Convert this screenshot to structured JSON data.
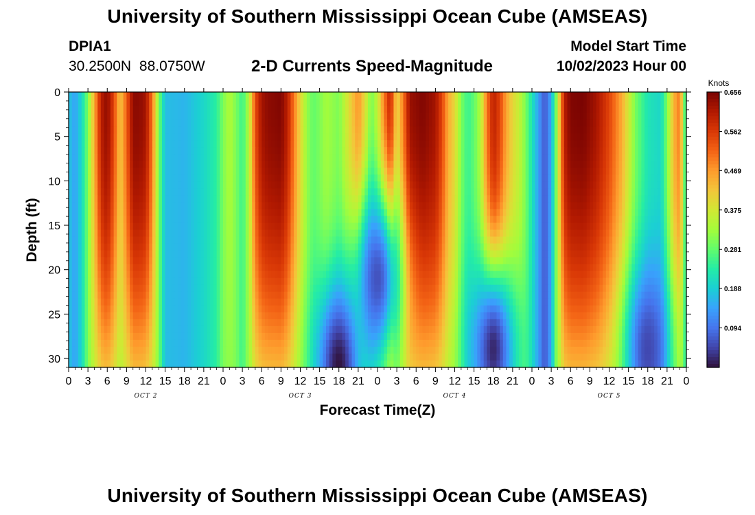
{
  "header": {
    "title": "University of Southern Mississippi Ocean Cube (AMSEAS)",
    "station_id": "DPIA1",
    "station_coords": "30.2500N  88.0750W",
    "model_start_label": "Model Start Time",
    "model_start_value": "10/02/2023 Hour 00"
  },
  "footer": {
    "title": "University of Southern Mississippi Ocean Cube (AMSEAS)"
  },
  "chart_data": {
    "type": "heatmap",
    "title": "2-D Currents Speed-Magnitude",
    "xlabel": "Forecast Time(Z)",
    "ylabel": "Depth (ft)",
    "xlim_hours": [
      0,
      96
    ],
    "ylim": [
      0,
      31
    ],
    "x_tick_labels": [
      "0",
      "3",
      "6",
      "9",
      "12",
      "15",
      "18",
      "21",
      "0",
      "3",
      "6",
      "9",
      "12",
      "15",
      "18",
      "21",
      "0",
      "3",
      "6",
      "9",
      "12",
      "15",
      "18",
      "21",
      "0",
      "3",
      "6",
      "9",
      "12",
      "15",
      "18",
      "21",
      "0"
    ],
    "y_ticks": [
      0,
      5,
      10,
      15,
      20,
      25,
      30
    ],
    "day_labels": [
      {
        "label": "OCT 2",
        "hour": 12
      },
      {
        "label": "OCT 3",
        "hour": 36
      },
      {
        "label": "OCT 4",
        "hour": 60
      },
      {
        "label": "OCT 5",
        "hour": 84
      }
    ],
    "colorbar": {
      "label": "Knots",
      "min": 0.0,
      "max": 0.656,
      "tick_labels": [
        "0.656",
        "0.562",
        "0.469",
        "0.375",
        "0.281",
        "0.188",
        "0.094"
      ],
      "colors": [
        "#30123b",
        "#4145ab",
        "#4675ed",
        "#39a2fc",
        "#1bcfd4",
        "#24eca6",
        "#61fc6c",
        "#a4fc3b",
        "#d1e834",
        "#f3c63a",
        "#fe9b2d",
        "#f36315",
        "#d93806",
        "#b11901",
        "#7a0402"
      ]
    },
    "surface_speed_knots": [
      {
        "hour": 0,
        "speed": 0.18
      },
      {
        "hour": 1,
        "speed": 0.14
      },
      {
        "hour": 2,
        "speed": 0.2
      },
      {
        "hour": 3,
        "speed": 0.3
      },
      {
        "hour": 4,
        "speed": 0.45
      },
      {
        "hour": 5,
        "speed": 0.6
      },
      {
        "hour": 6,
        "speed": 0.64
      },
      {
        "hour": 7,
        "speed": 0.55
      },
      {
        "hour": 8,
        "speed": 0.42
      },
      {
        "hour": 9,
        "speed": 0.52
      },
      {
        "hour": 10,
        "speed": 0.64
      },
      {
        "hour": 11,
        "speed": 0.64
      },
      {
        "hour": 12,
        "speed": 0.62
      },
      {
        "hour": 13,
        "speed": 0.5
      },
      {
        "hour": 14,
        "speed": 0.3
      },
      {
        "hour": 15,
        "speed": 0.17
      },
      {
        "hour": 18,
        "speed": 0.16
      },
      {
        "hour": 21,
        "speed": 0.2
      },
      {
        "hour": 23,
        "speed": 0.24
      },
      {
        "hour": 24,
        "speed": 0.3
      },
      {
        "hour": 25,
        "speed": 0.34
      },
      {
        "hour": 26,
        "speed": 0.3
      },
      {
        "hour": 27,
        "speed": 0.25
      },
      {
        "hour": 28,
        "speed": 0.34
      },
      {
        "hour": 29,
        "speed": 0.54
      },
      {
        "hour": 30,
        "speed": 0.62
      },
      {
        "hour": 31,
        "speed": 0.64
      },
      {
        "hour": 33,
        "speed": 0.65
      },
      {
        "hour": 34,
        "speed": 0.6
      },
      {
        "hour": 35,
        "speed": 0.5
      },
      {
        "hour": 36,
        "speed": 0.4
      },
      {
        "hour": 37,
        "speed": 0.32
      },
      {
        "hour": 38,
        "speed": 0.28
      },
      {
        "hour": 39,
        "speed": 0.3
      },
      {
        "hour": 40,
        "speed": 0.33
      },
      {
        "hour": 42,
        "speed": 0.3
      },
      {
        "hour": 44,
        "speed": 0.42
      },
      {
        "hour": 45,
        "speed": 0.48
      },
      {
        "hour": 46,
        "speed": 0.4
      },
      {
        "hour": 47,
        "speed": 0.3
      },
      {
        "hour": 48,
        "speed": 0.36
      },
      {
        "hour": 49,
        "speed": 0.5
      },
      {
        "hour": 50,
        "speed": 0.6
      },
      {
        "hour": 51,
        "speed": 0.4
      },
      {
        "hour": 52,
        "speed": 0.5
      },
      {
        "hour": 53,
        "speed": 0.63
      },
      {
        "hour": 55,
        "speed": 0.65
      },
      {
        "hour": 57,
        "speed": 0.62
      },
      {
        "hour": 58,
        "speed": 0.55
      },
      {
        "hour": 59,
        "speed": 0.45
      },
      {
        "hour": 60,
        "speed": 0.4
      },
      {
        "hour": 61,
        "speed": 0.3
      },
      {
        "hour": 62,
        "speed": 0.25
      },
      {
        "hour": 63,
        "speed": 0.28
      },
      {
        "hour": 64,
        "speed": 0.34
      },
      {
        "hour": 65,
        "speed": 0.5
      },
      {
        "hour": 66,
        "speed": 0.6
      },
      {
        "hour": 67,
        "speed": 0.55
      },
      {
        "hour": 68,
        "speed": 0.46
      },
      {
        "hour": 69,
        "speed": 0.4
      },
      {
        "hour": 70,
        "speed": 0.36
      },
      {
        "hour": 71,
        "speed": 0.3
      },
      {
        "hour": 72,
        "speed": 0.22
      },
      {
        "hour": 73,
        "speed": 0.14
      },
      {
        "hour": 74,
        "speed": 0.06
      },
      {
        "hour": 75,
        "speed": 0.15
      },
      {
        "hour": 76,
        "speed": 0.35
      },
      {
        "hour": 77,
        "speed": 0.6
      },
      {
        "hour": 78,
        "speed": 0.65
      },
      {
        "hour": 80,
        "speed": 0.656
      },
      {
        "hour": 82,
        "speed": 0.62
      },
      {
        "hour": 84,
        "speed": 0.55
      },
      {
        "hour": 86,
        "speed": 0.45
      },
      {
        "hour": 88,
        "speed": 0.3
      },
      {
        "hour": 90,
        "speed": 0.22
      },
      {
        "hour": 92,
        "speed": 0.2
      },
      {
        "hour": 93,
        "speed": 0.3
      },
      {
        "hour": 94,
        "speed": 0.44
      },
      {
        "hour": 95,
        "speed": 0.5
      },
      {
        "hour": 96,
        "speed": 0.2
      }
    ],
    "low_speed_cores": [
      {
        "hour": 42,
        "depth_ft": 31,
        "speed": 0.0
      },
      {
        "hour": 48,
        "depth_ft": 21,
        "speed": 0.06
      },
      {
        "hour": 66,
        "depth_ft": 29,
        "speed": 0.02
      },
      {
        "hour": 90,
        "depth_ft": 29,
        "speed": 0.05
      }
    ]
  }
}
